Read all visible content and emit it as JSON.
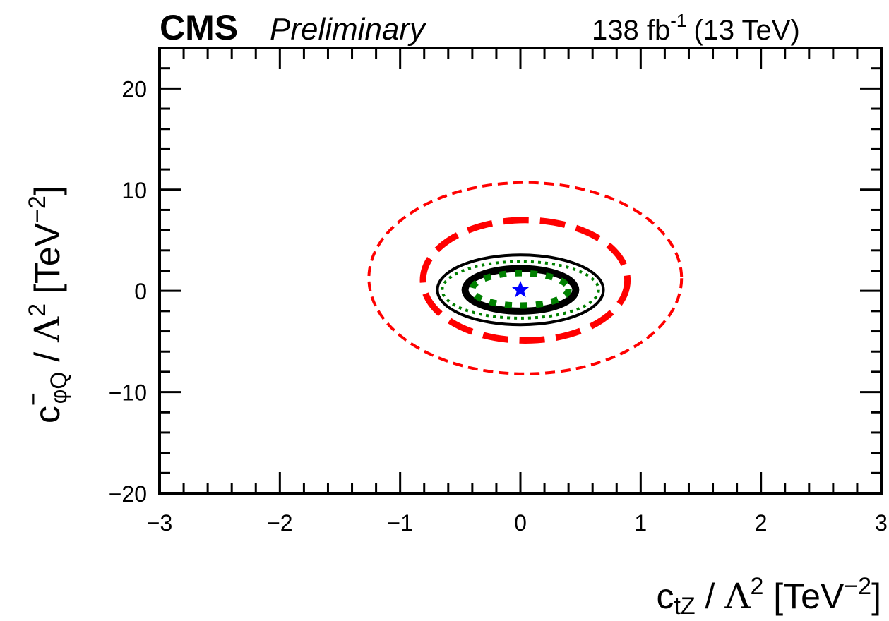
{
  "header": {
    "experiment": "CMS",
    "status": "Preliminary",
    "lumi_value": "138 fb",
    "lumi_exp": "-1",
    "energy": "(13 TeV)"
  },
  "chart_data": {
    "type": "contour",
    "xlabel": "c_{tZ} / Λ^2 [TeV^-2]",
    "ylabel": "c^-_{φQ} / Λ^2 [TeV^-2]",
    "xlim": [
      -3,
      3
    ],
    "ylim": [
      -20,
      24
    ],
    "x_ticks": [
      -3,
      -2,
      -1,
      0,
      1,
      2,
      3
    ],
    "x_tick_labels": [
      "−3",
      "−2",
      "−1",
      "0",
      "1",
      "2",
      "3"
    ],
    "y_ticks": [
      -20,
      -10,
      0,
      10,
      20
    ],
    "y_tick_labels": [
      "−20",
      "−10",
      "0",
      "10",
      "20"
    ],
    "best_fit": {
      "x": 0.0,
      "y": 0.1,
      "marker": "star",
      "color": "#0000ff"
    },
    "contours": [
      {
        "color": "#ff0000",
        "style": "dashed-thin",
        "center": [
          0.04,
          1.25
        ],
        "x_halfwidth": 1.3,
        "y_halfwidth": 9.45
      },
      {
        "color": "#ff0000",
        "style": "dashed-thick",
        "center": [
          0.04,
          1.05
        ],
        "x_halfwidth": 0.85,
        "y_halfwidth": 5.95
      },
      {
        "color": "#000000",
        "style": "solid-thin",
        "center": [
          0.0,
          0.1
        ],
        "x_halfwidth": 0.69,
        "y_halfwidth": 3.45
      },
      {
        "color": "#008000",
        "style": "dotted-thin",
        "center": [
          0.0,
          0.1
        ],
        "x_halfwidth": 0.65,
        "y_halfwidth": 2.8
      },
      {
        "color": "#000000",
        "style": "solid-thick",
        "center": [
          0.0,
          0.1
        ],
        "x_halfwidth": 0.46,
        "y_halfwidth": 2.1
      },
      {
        "color": "#008000",
        "style": "dotted-thick",
        "center": [
          0.0,
          0.15
        ],
        "x_halfwidth": 0.4,
        "y_halfwidth": 1.6
      }
    ]
  }
}
